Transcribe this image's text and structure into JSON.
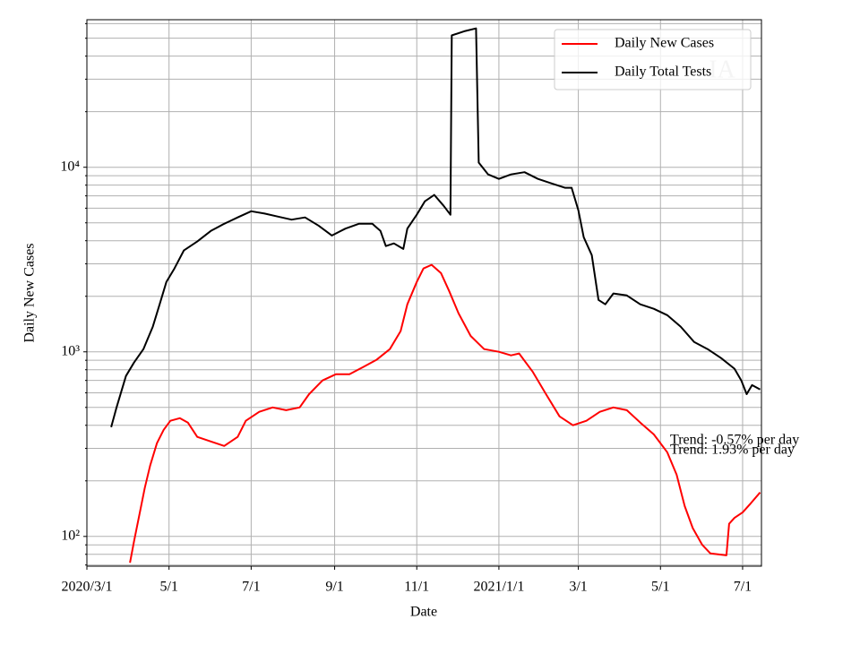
{
  "chart_data": {
    "type": "line",
    "x_label": "Date",
    "y_label": "Daily New Cases",
    "log_y": true,
    "grid": true,
    "legend_position": "upper right",
    "watermark": "IA",
    "annotations": [
      "Trend: -0.57% per day",
      "Trend: 1.93% per day"
    ],
    "xlim": [
      "2020-03-01",
      "2021-07-15"
    ],
    "xticks": [
      {
        "value": "2020-03-01",
        "label": "2020/3/1"
      },
      {
        "value": "2020-05-01",
        "label": "5/1"
      },
      {
        "value": "2020-07-01",
        "label": "7/1"
      },
      {
        "value": "2020-09-01",
        "label": "9/1"
      },
      {
        "value": "2020-11-01",
        "label": "11/1"
      },
      {
        "value": "2021-01-01",
        "label": "2021/1/1"
      },
      {
        "value": "2021-03-01",
        "label": "3/1"
      },
      {
        "value": "2021-05-01",
        "label": "5/1"
      },
      {
        "value": "2021-07-01",
        "label": "7/1"
      }
    ],
    "ylim": [
      69,
      63000
    ],
    "yticks": [
      {
        "value": 100,
        "label": "10²"
      },
      {
        "value": 1000,
        "label": "10³"
      },
      {
        "value": 10000,
        "label": "10⁴"
      }
    ],
    "yminorticks": [
      70,
      80,
      90,
      200,
      300,
      400,
      500,
      600,
      700,
      800,
      900,
      2000,
      3000,
      4000,
      5000,
      6000,
      7000,
      8000,
      9000,
      20000,
      30000,
      40000,
      50000,
      60000
    ],
    "series": [
      {
        "name": "Daily New Cases",
        "color": "#ff0000",
        "x": [
          "2020-04-02",
          "2020-04-05",
          "2020-04-09",
          "2020-04-13",
          "2020-04-17",
          "2020-04-22",
          "2020-04-27",
          "2020-05-02",
          "2020-05-09",
          "2020-05-15",
          "2020-05-22",
          "2020-06-01",
          "2020-06-11",
          "2020-06-21",
          "2020-06-27",
          "2020-07-07",
          "2020-07-17",
          "2020-07-27",
          "2020-08-06",
          "2020-08-13",
          "2020-08-23",
          "2020-09-02",
          "2020-09-12",
          "2020-09-22",
          "2020-10-02",
          "2020-10-12",
          "2020-10-20",
          "2020-10-25",
          "2020-11-01",
          "2020-11-06",
          "2020-11-12",
          "2020-11-19",
          "2020-11-25",
          "2020-12-02",
          "2020-12-11",
          "2020-12-21",
          "2021-01-01",
          "2021-01-10",
          "2021-01-16",
          "2021-01-26",
          "2021-02-05",
          "2021-02-15",
          "2021-02-25",
          "2021-03-07",
          "2021-03-17",
          "2021-03-27",
          "2021-04-06",
          "2021-04-16",
          "2021-04-26",
          "2021-05-06",
          "2021-05-13",
          "2021-05-19",
          "2021-05-25",
          "2021-06-01",
          "2021-06-07",
          "2021-06-19",
          "2021-06-21",
          "2021-06-25",
          "2021-07-01",
          "2021-07-07",
          "2021-07-14"
        ],
        "values": [
          72,
          94,
          131,
          183,
          242,
          320,
          378,
          423,
          437,
          414,
          346,
          327,
          309,
          346,
          423,
          473,
          500,
          483,
          500,
          590,
          700,
          757,
          757,
          826,
          904,
          1035,
          1295,
          1810,
          2390,
          2830,
          2960,
          2670,
          2140,
          1620,
          1220,
          1035,
          1000,
          957,
          980,
          782,
          590,
          447,
          400,
          423,
          473,
          500,
          483,
          414,
          357,
          286,
          216,
          146,
          111,
          90,
          81,
          79,
          117,
          126,
          135,
          151,
          173
        ]
      },
      {
        "name": "Daily Total Tests",
        "color": "#000000",
        "x": [
          "2020-03-19",
          "2020-03-23",
          "2020-03-30",
          "2020-04-05",
          "2020-04-12",
          "2020-04-19",
          "2020-04-24",
          "2020-04-29",
          "2020-05-05",
          "2020-05-12",
          "2020-05-22",
          "2020-06-01",
          "2020-06-11",
          "2020-06-21",
          "2020-07-01",
          "2020-07-11",
          "2020-07-21",
          "2020-07-31",
          "2020-08-10",
          "2020-08-20",
          "2020-08-30",
          "2020-09-09",
          "2020-09-19",
          "2020-09-29",
          "2020-10-05",
          "2020-10-09",
          "2020-10-15",
          "2020-10-22",
          "2020-10-25",
          "2020-11-01",
          "2020-11-07",
          "2020-11-14",
          "2020-11-21",
          "2020-11-26",
          "2020-11-27",
          "2020-12-07",
          "2020-12-15",
          "2020-12-17",
          "2020-12-24",
          "2021-01-01",
          "2021-01-10",
          "2021-01-20",
          "2021-01-30",
          "2021-02-09",
          "2021-02-19",
          "2021-02-24",
          "2021-03-01",
          "2021-03-05",
          "2021-03-11",
          "2021-03-16",
          "2021-03-21",
          "2021-03-27",
          "2021-04-06",
          "2021-04-16",
          "2021-04-26",
          "2021-05-06",
          "2021-05-16",
          "2021-05-26",
          "2021-06-05",
          "2021-06-15",
          "2021-06-25",
          "2021-06-30",
          "2021-07-04",
          "2021-07-08",
          "2021-07-14"
        ],
        "values": [
          391,
          500,
          740,
          875,
          1035,
          1370,
          1810,
          2390,
          2830,
          3540,
          3960,
          4520,
          4940,
          5350,
          5780,
          5610,
          5400,
          5200,
          5350,
          4830,
          4270,
          4650,
          4940,
          4940,
          4520,
          3740,
          3870,
          3610,
          4650,
          5530,
          6540,
          7080,
          6180,
          5530,
          51800,
          54700,
          56500,
          10600,
          9140,
          8650,
          9140,
          9400,
          8650,
          8180,
          7740,
          7740,
          5850,
          4180,
          3340,
          1910,
          1810,
          2070,
          2020,
          1810,
          1710,
          1580,
          1370,
          1130,
          1035,
          925,
          810,
          700,
          590,
          660,
          625
        ]
      }
    ]
  }
}
